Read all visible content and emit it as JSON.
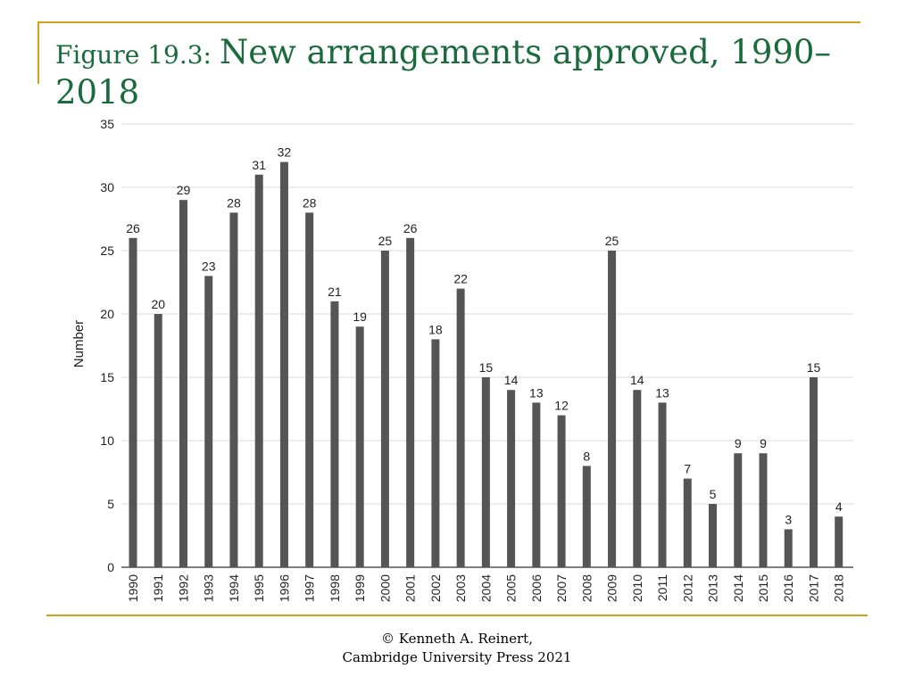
{
  "title": {
    "prefix": "Figure 19.3: ",
    "main": "New arrangements approved, 1990–2018"
  },
  "footer": {
    "line1": "© Kenneth A. Reinert,",
    "line2": "Cambridge University Press 2021"
  },
  "colors": {
    "title": "#1a6b3c",
    "accent_rule": "#d4a019",
    "bar": "#555555"
  },
  "chart_data": {
    "type": "bar",
    "title": "",
    "xlabel": "",
    "ylabel": "Number",
    "ylim": [
      0,
      35
    ],
    "yticks": [
      0,
      5,
      10,
      15,
      20,
      25,
      30,
      35
    ],
    "grid": true,
    "legend": "none",
    "categories": [
      "1990",
      "1991",
      "1992",
      "1993",
      "1994",
      "1995",
      "1996",
      "1997",
      "1998",
      "1999",
      "2000",
      "2001",
      "2002",
      "2003",
      "2004",
      "2005",
      "2006",
      "2007",
      "2008",
      "2009",
      "2010",
      "2011",
      "2012",
      "2013",
      "2014",
      "2015",
      "2016",
      "2017",
      "2018"
    ],
    "values": [
      26,
      20,
      29,
      23,
      28,
      31,
      32,
      28,
      21,
      19,
      25,
      26,
      18,
      22,
      15,
      14,
      13,
      12,
      8,
      25,
      14,
      13,
      7,
      5,
      9,
      9,
      3,
      15,
      4
    ]
  }
}
